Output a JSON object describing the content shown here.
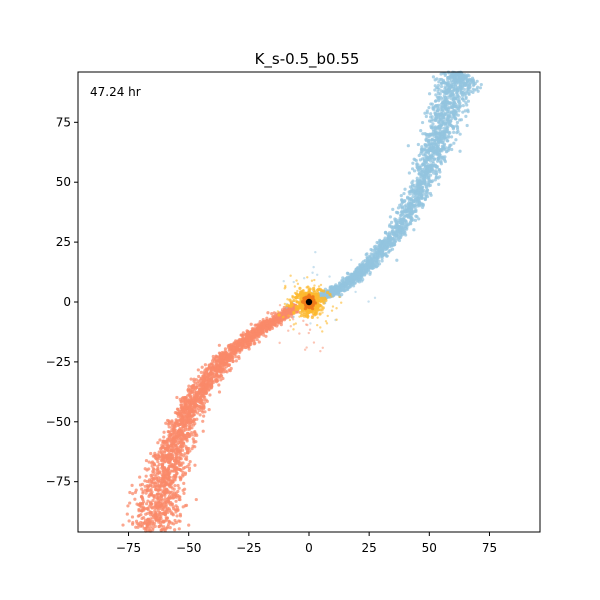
{
  "chart_data": {
    "type": "scatter",
    "title": "K_s-0.5_b0.55",
    "annotation": "47.24 hr",
    "xlabel": "",
    "ylabel": "",
    "xlim": [
      -96,
      96
    ],
    "ylim": [
      -96,
      96
    ],
    "xticks": [
      -75,
      -50,
      -25,
      0,
      25,
      50,
      75
    ],
    "yticks": [
      -75,
      -50,
      -25,
      0,
      25,
      50,
      75
    ],
    "xtick_labels": [
      "−75",
      "−50",
      "−25",
      "0",
      "25",
      "50",
      "75"
    ],
    "ytick_labels": [
      "−75",
      "−50",
      "−25",
      "0",
      "25",
      "50",
      "75"
    ],
    "grid": false,
    "legend": "none",
    "colors": {
      "trailing": "#fa8a6a",
      "leading": "#93c4df",
      "core": "#fdb92e",
      "core_inner": "#f07a1a",
      "center": "#000000"
    },
    "series": [
      {
        "color_key": "trailing",
        "spine": [
          [
            -66,
            -96
          ],
          [
            -63,
            -85
          ],
          [
            -60,
            -75
          ],
          [
            -57,
            -65
          ],
          [
            -54,
            -55
          ],
          [
            -50,
            -45
          ],
          [
            -45,
            -36
          ],
          [
            -38,
            -27
          ],
          [
            -30,
            -19
          ],
          [
            -21,
            -12
          ],
          [
            -12,
            -6
          ],
          [
            -5,
            -2
          ]
        ],
        "spread": [
          5.5,
          4.8,
          4.2,
          3.6,
          3.0,
          2.6,
          2.2,
          1.8,
          1.5,
          1.2,
          1.0,
          0.9
        ],
        "density": 220
      },
      {
        "color_key": "leading",
        "spine": [
          [
            5,
            2
          ],
          [
            12,
            5
          ],
          [
            20,
            11
          ],
          [
            28,
            19
          ],
          [
            36,
            29
          ],
          [
            43,
            40
          ],
          [
            48,
            52
          ],
          [
            52,
            63
          ],
          [
            55,
            73
          ],
          [
            58,
            83
          ],
          [
            61,
            92
          ],
          [
            63,
            96
          ]
        ],
        "spread": [
          0.9,
          1.0,
          1.2,
          1.5,
          1.8,
          2.1,
          2.5,
          2.9,
          3.3,
          3.7,
          4.1,
          4.4
        ],
        "density": 200
      }
    ],
    "core": {
      "x": 0,
      "y": 0,
      "center_point": [
        0,
        0
      ]
    }
  }
}
